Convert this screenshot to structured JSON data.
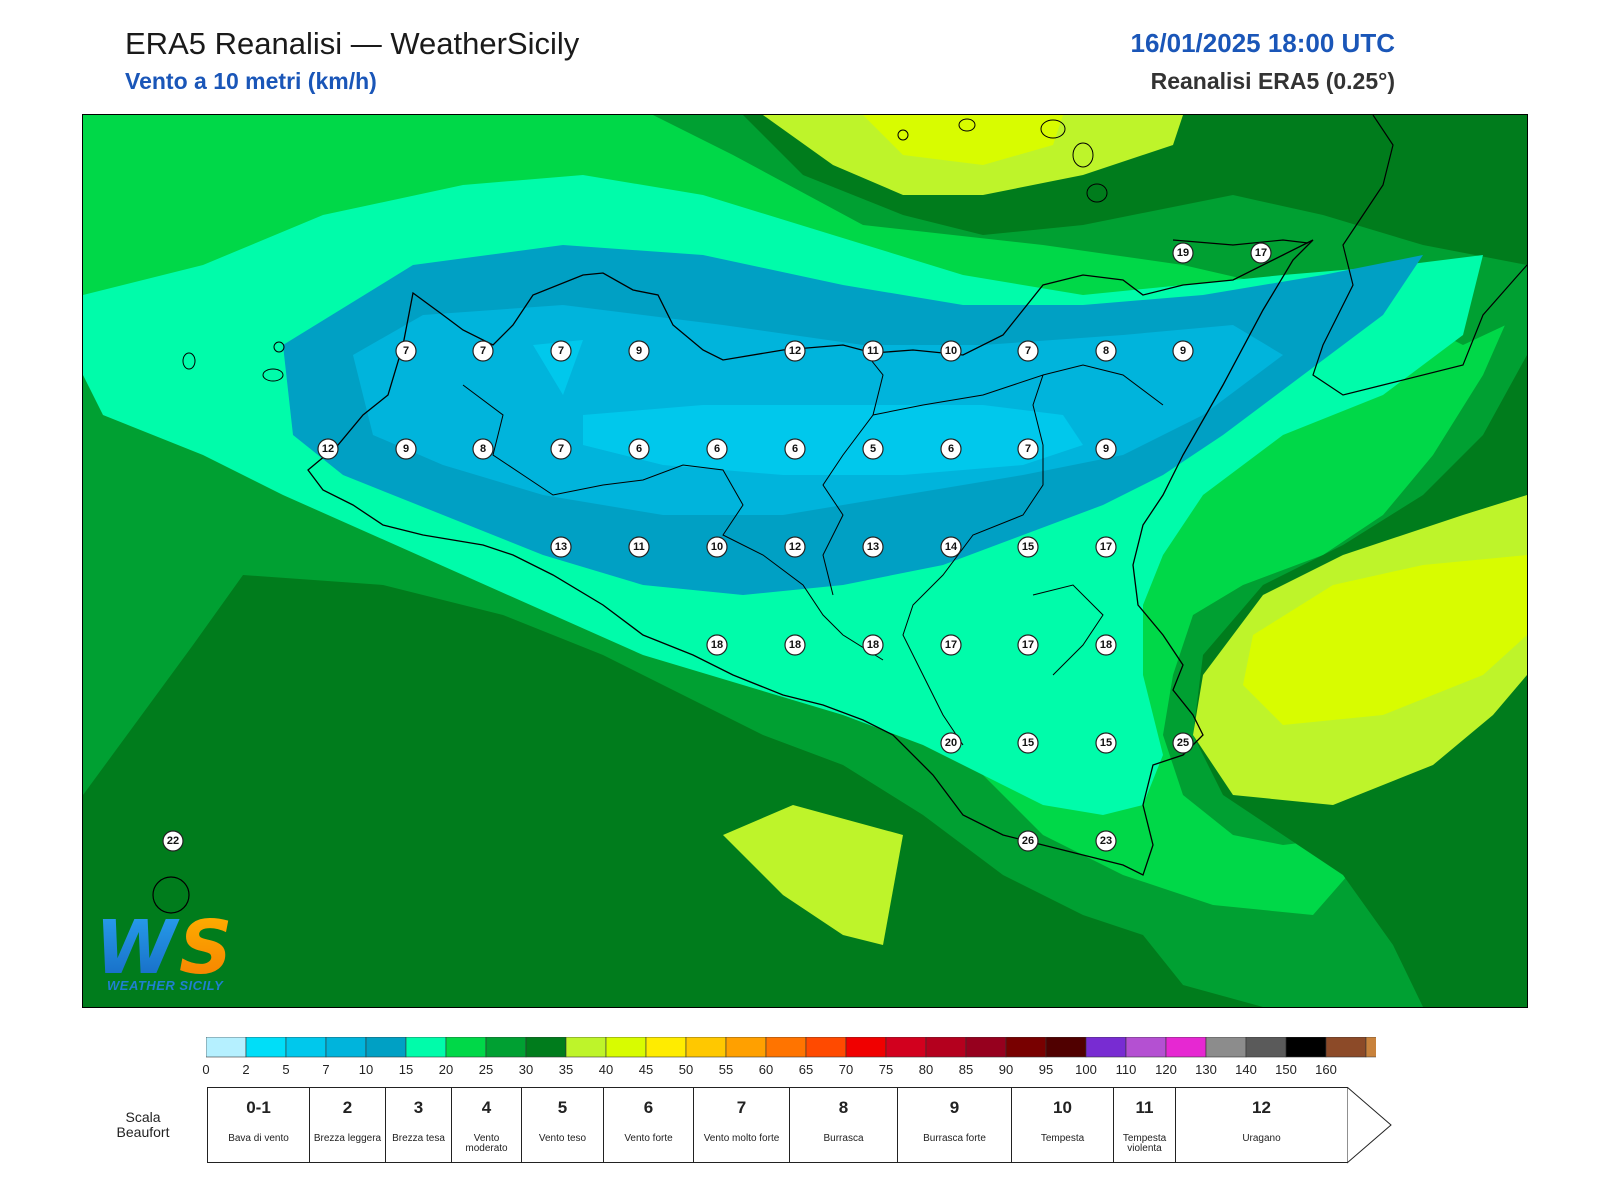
{
  "header": {
    "title": "ERA5 Reanalisi — WeatherSicily",
    "subtitle": "Vento a 10 metri (km/h)",
    "datetime": "16/01/2025 18:00 UTC",
    "source": "Reanalisi ERA5 (0.25°)"
  },
  "logo": {
    "icon": "ws-logo-icon",
    "letters": "WS",
    "text": "WEATHER SICILY"
  },
  "colors": {
    "accent": "#1a56b8"
  },
  "colorbar": {
    "ticks": [
      "0",
      "2",
      "5",
      "7",
      "10",
      "15",
      "20",
      "25",
      "30",
      "35",
      "40",
      "45",
      "50",
      "55",
      "60",
      "65",
      "70",
      "75",
      "80",
      "85",
      "90",
      "95",
      "100",
      "110",
      "120",
      "130",
      "140",
      "150",
      "160"
    ],
    "colors": [
      "#b5f0ff",
      "#00def8",
      "#00c8ec",
      "#00b4dc",
      "#00a0c4",
      "#00fcaa",
      "#00d848",
      "#00a032",
      "#007c1c",
      "#bef42a",
      "#d8fc00",
      "#ffec00",
      "#ffc800",
      "#ffa000",
      "#ff7400",
      "#ff4a00",
      "#f00000",
      "#d2001e",
      "#b4001e",
      "#96001e",
      "#780000",
      "#500000",
      "#782cd2",
      "#b450d2",
      "#e628d2",
      "#8c8c8c",
      "#5a5a5a",
      "#000000",
      "#8c4a28",
      "#c8823c"
    ]
  },
  "beaufort": {
    "label": "Scala Beaufort",
    "items": [
      {
        "num": "0-1",
        "desc": "Bava di vento"
      },
      {
        "num": "2",
        "desc": "Brezza leggera"
      },
      {
        "num": "3",
        "desc": "Brezza tesa"
      },
      {
        "num": "4",
        "desc": "Vento moderato"
      },
      {
        "num": "5",
        "desc": "Vento teso"
      },
      {
        "num": "6",
        "desc": "Vento forte"
      },
      {
        "num": "7",
        "desc": "Vento molto forte"
      },
      {
        "num": "8",
        "desc": "Burrasca"
      },
      {
        "num": "9",
        "desc": "Burrasca forte"
      },
      {
        "num": "10",
        "desc": "Tempesta"
      },
      {
        "num": "11",
        "desc": "Tempesta violenta"
      },
      {
        "num": "12",
        "desc": "Uragano"
      }
    ]
  },
  "stations": [
    "19",
    "17",
    "7",
    "7",
    "7",
    "9",
    "12",
    "11",
    "10",
    "7",
    "8",
    "9",
    "12",
    "9",
    "8",
    "7",
    "6",
    "6",
    "6",
    "5",
    "6",
    "7",
    "9",
    "13",
    "11",
    "10",
    "12",
    "13",
    "14",
    "15",
    "17",
    "18",
    "18",
    "18",
    "17",
    "17",
    "18",
    "20",
    "15",
    "15",
    "25",
    "22",
    "26",
    "23"
  ]
}
